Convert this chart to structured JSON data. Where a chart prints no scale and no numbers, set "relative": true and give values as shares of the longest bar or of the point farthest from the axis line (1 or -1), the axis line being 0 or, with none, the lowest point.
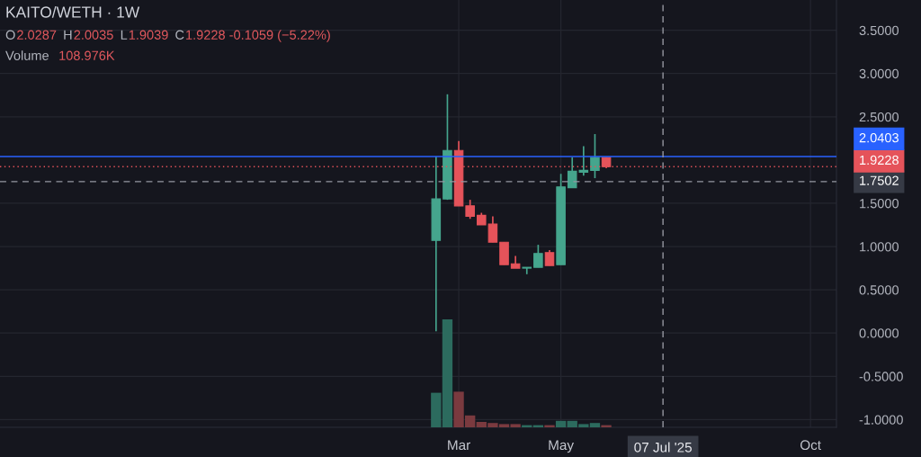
{
  "chart_data": [
    {
      "type": "candlestick",
      "title": "KAITO/WETH · 1W",
      "x": [
        "2025-02-17",
        "2025-02-24",
        "2025-03-03",
        "2025-03-10",
        "2025-03-17",
        "2025-03-24",
        "2025-03-31",
        "2025-04-07",
        "2025-04-14",
        "2025-04-21",
        "2025-04-28",
        "2025-05-05",
        "2025-05-12",
        "2025-05-19",
        "2025-05-26",
        "2025-06-02"
      ],
      "ohlc": [
        [
          1.07,
          2.04,
          0.02,
          1.55
        ],
        [
          1.55,
          2.76,
          1.54,
          2.11
        ],
        [
          2.11,
          2.22,
          1.47,
          1.47
        ],
        [
          1.47,
          1.54,
          1.32,
          1.35
        ],
        [
          1.36,
          1.39,
          1.25,
          1.25
        ],
        [
          1.26,
          1.35,
          1.05,
          1.05
        ],
        [
          1.05,
          1.05,
          0.79,
          0.79
        ],
        [
          0.8,
          0.89,
          0.75,
          0.75
        ],
        [
          0.75,
          0.76,
          0.68,
          0.76
        ],
        [
          0.76,
          1.02,
          0.76,
          0.92
        ],
        [
          0.93,
          0.96,
          0.78,
          0.78
        ],
        [
          0.79,
          1.84,
          0.79,
          1.69
        ],
        [
          1.68,
          2.03,
          1.68,
          1.87
        ],
        [
          1.86,
          2.16,
          1.82,
          1.88
        ],
        [
          1.88,
          2.3,
          1.79,
          2.0287
        ],
        [
          2.0287,
          2.0287,
          1.9039,
          1.9228
        ]
      ],
      "colors": [
        "#45a58d",
        "#45a58d",
        "#e5535a",
        "#e5535a",
        "#e5535a",
        "#e5535a",
        "#e5535a",
        "#e5535a",
        "#45a58d",
        "#45a58d",
        "#e5535a",
        "#45a58d",
        "#45a58d",
        "#45a58d",
        "#45a58d",
        "#e5535a"
      ],
      "xlim": [
        "2024-05-24",
        "2025-10-22"
      ],
      "ylim": [
        -1.09,
        3.85
      ],
      "xticks": [
        {
          "value": "2025-03-03",
          "label": "Mar"
        },
        {
          "value": "2025-05-05",
          "label": "May"
        },
        {
          "value": "2025-10-06",
          "label": "Oct"
        }
      ],
      "yticks": [
        {
          "value": 3.5,
          "label": "3.5000"
        },
        {
          "value": 3,
          "label": "3.0000"
        },
        {
          "value": 2.5,
          "label": "2.5000"
        },
        {
          "value": 1.5,
          "label": "1.5000"
        },
        {
          "value": 1,
          "label": "1.0000"
        },
        {
          "value": 0.5,
          "label": "0.5000"
        },
        {
          "value": 0,
          "label": "0.0000"
        },
        {
          "value": -0.5,
          "label": "-0.5000"
        },
        {
          "value": -1,
          "label": "-1.0000"
        }
      ],
      "ref_lines": [
        {
          "axis": "y",
          "value": 2.0403,
          "label": "2.0403",
          "color": "#2962ff",
          "line_style": "solid"
        },
        {
          "axis": "y",
          "value": 1.9228,
          "label": "1.9228",
          "color": "#e5535a",
          "line_style": "dotted"
        },
        {
          "axis": "y",
          "value": 1.7502,
          "label": "1.7502",
          "color": "#9598a1",
          "line_style": "dashed"
        },
        {
          "axis": "x",
          "value": "2025-07-07",
          "label": "07 Jul '25",
          "color": "#9598a1",
          "line_style": "dashed"
        }
      ],
      "grid": true,
      "annotations": [
        "O",
        "2.0287",
        "H",
        "2.0035",
        "L",
        "1.9039",
        "C",
        "1.9228 -0.1059 (−5.22%)"
      ]
    },
    {
      "type": "bar",
      "relative": true,
      "x": [
        "2025-02-17",
        "2025-02-24",
        "2025-03-03",
        "2025-03-10",
        "2025-03-17",
        "2025-03-24",
        "2025-03-31",
        "2025-04-07",
        "2025-04-14",
        "2025-04-21",
        "2025-04-28",
        "2025-05-05",
        "2025-05-12",
        "2025-05-19",
        "2025-05-26",
        "2025-06-02"
      ],
      "values": [
        0.32,
        1,
        0.33,
        0.11,
        0.05,
        0.04,
        0.03,
        0.03,
        0.02,
        0.02,
        0.02,
        0.06,
        0.06,
        0.03,
        0.04,
        0.02
      ],
      "colors": [
        "#2c6b5e",
        "#2c6b5e",
        "#7a3a3f",
        "#7a3a3f",
        "#7a3a3f",
        "#7a3a3f",
        "#7a3a3f",
        "#7a3a3f",
        "#2c6b5e",
        "#2c6b5e",
        "#7a3a3f",
        "#2c6b5e",
        "#2c6b5e",
        "#2c6b5e",
        "#2c6b5e",
        "#7a3a3f"
      ],
      "xlim": [
        "2024-05-24",
        "2025-10-22"
      ],
      "annotations": [
        "Volume",
        "108.976K"
      ]
    }
  ]
}
